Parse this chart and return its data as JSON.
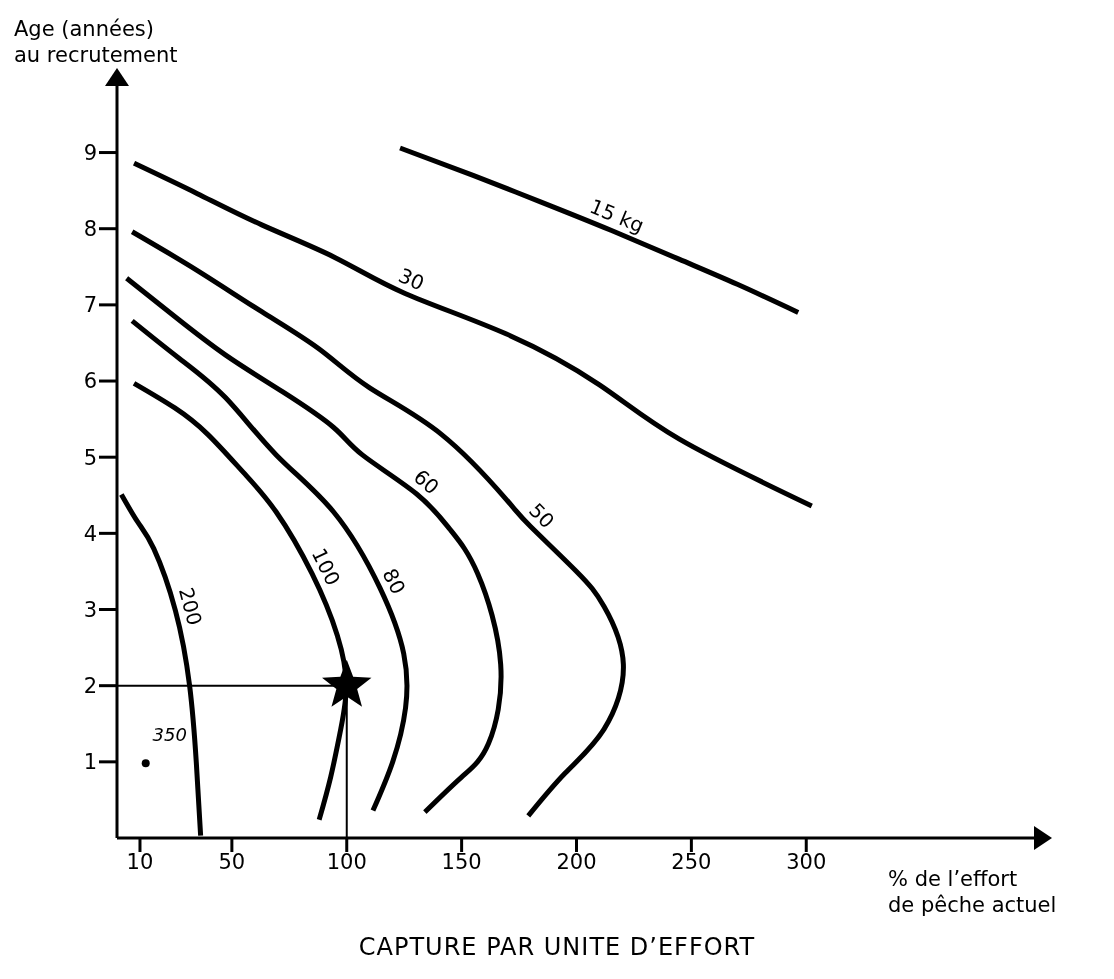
{
  "chart_data": {
    "type": "line",
    "title": "CAPTURE PAR UNITE D’EFFORT",
    "xlabel": "% de l’effort\nde pêche actuel",
    "ylabel": "Age (années)\nau recrutement",
    "xlim": [
      0,
      400
    ],
    "ylim": [
      0,
      9.9
    ],
    "xticks": [
      10,
      50,
      100,
      150,
      200,
      250,
      300
    ],
    "yticks": [
      1,
      2,
      3,
      4,
      5,
      6,
      7,
      8,
      9
    ],
    "marker": "none",
    "line_style": "solid",
    "ref_lines": [
      {
        "axis": "x",
        "value": 100,
        "color": "#000000"
      },
      {
        "axis": "y",
        "value": 2,
        "color": "#000000"
      }
    ],
    "series": [
      {
        "name": "15 kg",
        "color": "#000000",
        "x": [
          123.2,
          155,
          184.6,
          215,
          244.6,
          270,
          296.5
        ],
        "values": [
          9.06,
          8.7,
          8.35,
          7.98,
          7.6,
          7.27,
          6.9
        ]
      },
      {
        "name": "30",
        "color": "#000000",
        "x": [
          7.4,
          35,
          63,
          95,
          125.4,
          169.3,
          210,
          244.6,
          302.4
        ],
        "values": [
          8.86,
          8.46,
          8.05,
          7.62,
          7.15,
          6.62,
          5.95,
          5.24,
          4.36
        ]
      },
      {
        "name": "50",
        "color": "#000000",
        "x": [
          6.6,
          35,
          63,
          88,
          110,
          141.2,
          169.3,
          180,
          200,
          212,
          220.4,
          212,
          195,
          179
        ],
        "values": [
          7.96,
          7.45,
          6.91,
          6.42,
          5.91,
          5.3,
          4.45,
          4.09,
          3.5,
          3.04,
          2.28,
          1.43,
          0.85,
          0.29
        ]
      },
      {
        "name": "60",
        "color": "#000000",
        "x": [
          4.2,
          25,
          47.3,
          72,
          94.3,
          106.8,
          130.3,
          145,
          157,
          167,
          161.7,
          150,
          134
        ],
        "values": [
          7.35,
          6.85,
          6.34,
          5.86,
          5.39,
          5.03,
          4.52,
          4.05,
          3.47,
          2.28,
          1.24,
          0.8,
          0.34
        ]
      },
      {
        "name": "80",
        "color": "#000000",
        "x": [
          6.6,
          27,
          47.3,
          69.3,
          94.3,
          114.5,
          124.8,
          125.6,
          120,
          111.4
        ],
        "values": [
          6.79,
          6.3,
          5.78,
          5.03,
          4.28,
          3.28,
          2.42,
          1.71,
          1.0,
          0.36
        ]
      },
      {
        "name": "100",
        "color": "#000000",
        "x": [
          7.4,
          25,
          39.5,
          55,
          69.3,
          84.9,
          95.9,
          99.8,
          97.4,
          93,
          88
        ],
        "values": [
          5.97,
          5.65,
          5.3,
          4.8,
          4.28,
          3.47,
          2.66,
          2.01,
          1.43,
          0.8,
          0.24
        ]
      },
      {
        "name": "200",
        "color": "#000000",
        "x": [
          1.9,
          9,
          16,
          25.4,
          31.6,
          34.5,
          36.4
        ],
        "values": [
          4.51,
          4.15,
          3.8,
          2.99,
          2.0,
          1.0,
          0.03
        ]
      },
      {
        "name": "350",
        "type": "scatter",
        "marker": "circle",
        "color": "#000000",
        "x": [
          12.5
        ],
        "values": [
          0.98
        ]
      },
      {
        "type": "scatter",
        "marker": "star",
        "color": "#000000",
        "x": [
          100
        ],
        "values": [
          2
        ]
      }
    ]
  }
}
